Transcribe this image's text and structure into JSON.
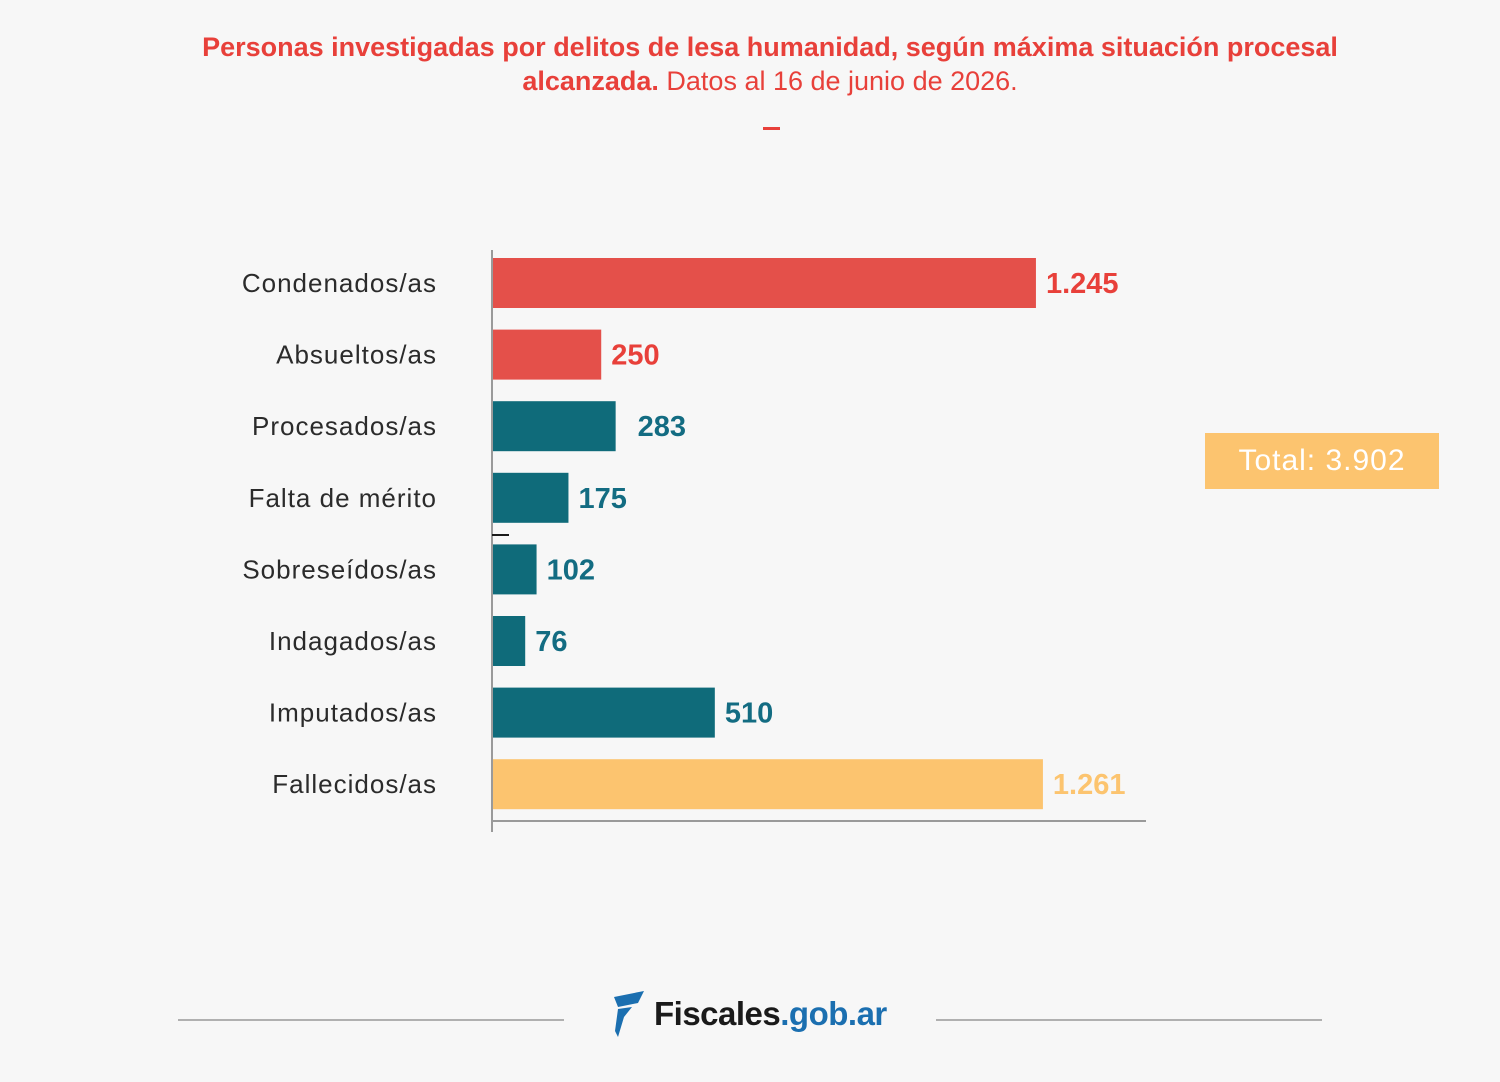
{
  "title": {
    "bold": "Personas investigadas por delitos de lesa humanidad, según máxima situación procesal alcanzada.",
    "date": "Datos al 16 de junio de 2026."
  },
  "total_label": "Total: 3.902",
  "colors": {
    "red": "#e4504a",
    "teal": "#0f6b7a",
    "orange": "#fcc46f",
    "red_text": "#e8403a",
    "teal_text": "#136c82",
    "orange_text": "#fcc46f"
  },
  "footer": {
    "logo_name": "Fiscales",
    "logo_domain": ".gob.ar"
  },
  "chart_data": {
    "type": "bar",
    "orientation": "horizontal",
    "categories": [
      "Condenados/as",
      "Absueltos/as",
      "Procesados/as",
      "Falta de mérito",
      "Sobreseídos/as",
      "Indagados/as",
      "Imputados/as",
      "Fallecidos/as"
    ],
    "values": [
      1245,
      250,
      283,
      175,
      102,
      76,
      510,
      1261
    ],
    "value_labels": [
      "1.245",
      "250",
      "283",
      "175",
      "102",
      "76",
      "510",
      "1.261"
    ],
    "bar_colors": [
      "red",
      "red",
      "teal",
      "teal",
      "teal",
      "teal",
      "teal",
      "orange"
    ],
    "xlim": [
      0,
      1500
    ],
    "grid": false,
    "legend": "none"
  }
}
